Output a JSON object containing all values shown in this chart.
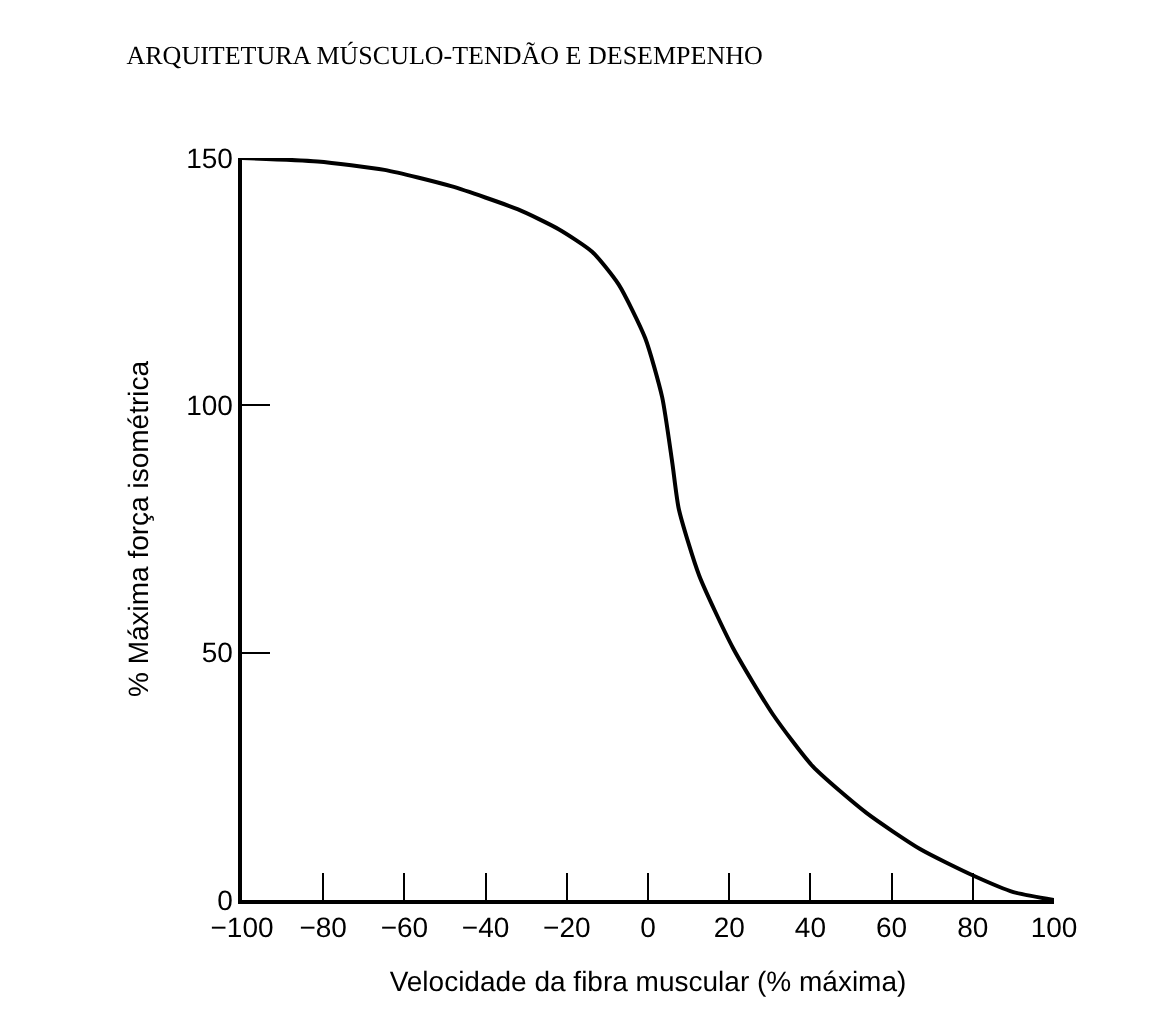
{
  "chart_data": {
    "type": "line",
    "title": "ARQUITETURA MÚSCULO-TENDÃO E DESEMPENHO",
    "xlabel": "Velocidade da fibra muscular (% máxima)",
    "ylabel": "% Máxima força isométrica",
    "x": [
      -100,
      -81.4,
      -64.9,
      -48.5,
      -32,
      -22,
      -13.7,
      -7.2,
      -0.7,
      3.5,
      6,
      7.6,
      12.6,
      20.9,
      30.7,
      40.6,
      53.8,
      67,
      80.2,
      90,
      100
    ],
    "series": [
      {
        "color": "#000000",
        "values": [
          150,
          149.3,
          147.6,
          144.3,
          139.6,
          135.6,
          131,
          124.4,
          113.6,
          101.6,
          88.3,
          79,
          65.6,
          51,
          37.6,
          27,
          17.6,
          10.3,
          4.9,
          1.6,
          0
        ]
      }
    ],
    "xlim": [
      -100,
      100
    ],
    "xticks": [
      {
        "value": -100,
        "label": "−100"
      },
      {
        "value": -80,
        "label": "−80"
      },
      {
        "value": -60,
        "label": "−60"
      },
      {
        "value": -40,
        "label": "−40"
      },
      {
        "value": -20,
        "label": "−20"
      },
      0,
      20,
      40,
      60,
      80,
      100
    ],
    "ylim": [
      0,
      150
    ],
    "yticks": [
      0,
      50,
      100,
      150
    ],
    "legend": false,
    "marker": "none",
    "line_style": "solid"
  }
}
